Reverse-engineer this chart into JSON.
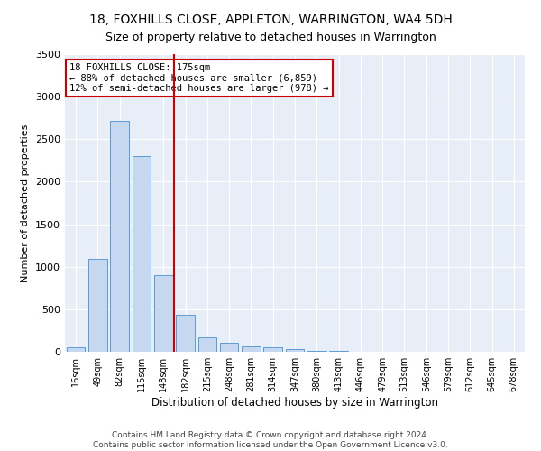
{
  "title": "18, FOXHILLS CLOSE, APPLETON, WARRINGTON, WA4 5DH",
  "subtitle": "Size of property relative to detached houses in Warrington",
  "xlabel": "Distribution of detached houses by size in Warrington",
  "ylabel": "Number of detached properties",
  "categories": [
    "16sqm",
    "49sqm",
    "82sqm",
    "115sqm",
    "148sqm",
    "182sqm",
    "215sqm",
    "248sqm",
    "281sqm",
    "314sqm",
    "347sqm",
    "380sqm",
    "413sqm",
    "446sqm",
    "479sqm",
    "513sqm",
    "546sqm",
    "579sqm",
    "612sqm",
    "645sqm",
    "678sqm"
  ],
  "values": [
    50,
    1090,
    2720,
    2300,
    900,
    430,
    170,
    105,
    65,
    50,
    30,
    15,
    8,
    3,
    2,
    1,
    1,
    0,
    0,
    0,
    0
  ],
  "bar_color": "#c5d8f0",
  "bar_edge_color": "#5b9bd5",
  "vline_x_index": 5,
  "vline_color": "#cc0000",
  "annotation_line1": "18 FOXHILLS CLOSE: 175sqm",
  "annotation_line2": "← 88% of detached houses are smaller (6,859)",
  "annotation_line3": "12% of semi-detached houses are larger (978) →",
  "annotation_box_color": "white",
  "annotation_box_edge_color": "#cc0000",
  "ymax": 3500,
  "yticks": [
    0,
    500,
    1000,
    1500,
    2000,
    2500,
    3000,
    3500
  ],
  "background_color": "#e8eef7",
  "footer_line1": "Contains HM Land Registry data © Crown copyright and database right 2024.",
  "footer_line2": "Contains public sector information licensed under the Open Government Licence v3.0.",
  "title_fontsize": 10,
  "xlabel_fontsize": 8.5,
  "ylabel_fontsize": 8
}
